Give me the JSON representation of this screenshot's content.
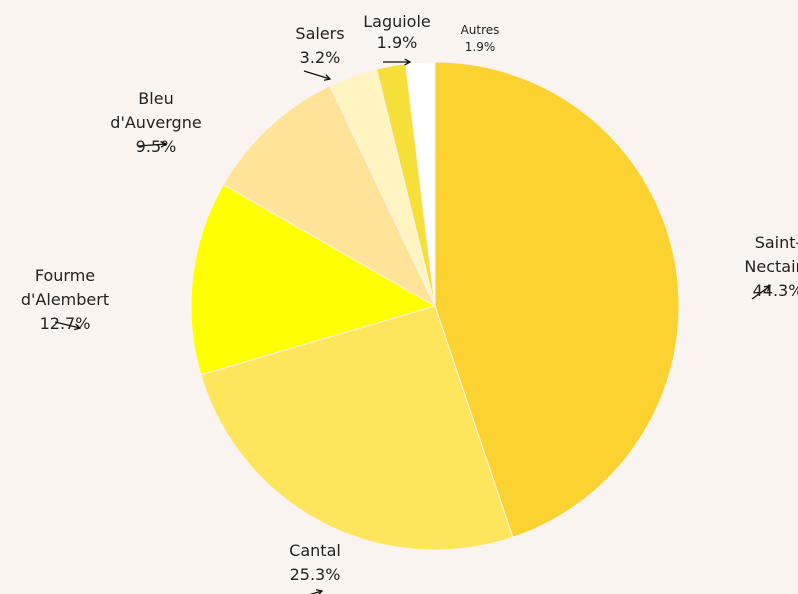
{
  "chart_data": {
    "type": "pie",
    "title": "",
    "start_angle_deg": 0,
    "direction": "clockwise",
    "slices": [
      {
        "label": "Saint-Nectaire",
        "label_lines": [
          "Saint-",
          "Nectaire"
        ],
        "value_text": "44.3%",
        "value": 44.3,
        "color": "#fbd22f"
      },
      {
        "label": "Cantal",
        "label_lines": [
          "Cantal"
        ],
        "value_text": "25.3%",
        "value": 25.3,
        "color": "#ffe55c"
      },
      {
        "label": "Fourme d'Alembert",
        "label_lines": [
          "Fourme",
          "d'Alembert"
        ],
        "value_text": "12.7%",
        "value": 12.7,
        "color": "#ffff00"
      },
      {
        "label": "Bleu d'Auvergne",
        "label_lines": [
          "Bleu",
          "d'Auvergne"
        ],
        "value_text": "9.5%",
        "value": 9.5,
        "color": "#ffe399"
      },
      {
        "label": "Salers",
        "label_lines": [
          "Salers"
        ],
        "value_text": "3.2%",
        "value": 3.2,
        "color": "#fff4c2"
      },
      {
        "label": "Laguiole",
        "label_lines": [
          "Laguiole"
        ],
        "value_text": "1.9%",
        "value": 1.9,
        "color": "#f7df3a"
      },
      {
        "label": "Autres",
        "label_lines": [
          "Autres"
        ],
        "value_text": "1.9%",
        "value": 1.9,
        "color": "#ffffff"
      }
    ],
    "background": "#faf4f0",
    "slice_border_color": "#faf4f0"
  }
}
